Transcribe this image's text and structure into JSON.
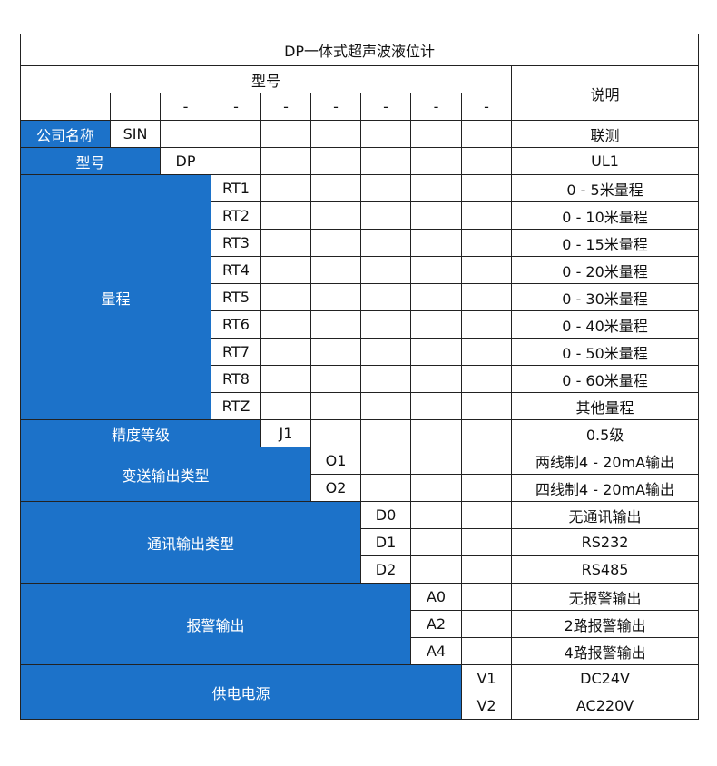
{
  "title": "DP一体式超声波液位计",
  "model_header": "型号",
  "desc_header": "说明",
  "dash": "-",
  "colors": {
    "header_blue": "#1c72c9"
  },
  "rows": [
    {
      "label": "公司名称",
      "code": "SIN",
      "desc": "联测"
    },
    {
      "label": "型号",
      "code": "DP",
      "desc": "UL1"
    },
    {
      "label": "量程",
      "options": [
        {
          "code": "RT1",
          "desc": "0 - 5米量程"
        },
        {
          "code": "RT2",
          "desc": "0 - 10米量程"
        },
        {
          "code": "RT3",
          "desc": "0 - 15米量程"
        },
        {
          "code": "RT4",
          "desc": "0 - 20米量程"
        },
        {
          "code": "RT5",
          "desc": "0 - 30米量程"
        },
        {
          "code": "RT6",
          "desc": "0 - 40米量程"
        },
        {
          "code": "RT7",
          "desc": "0 - 50米量程"
        },
        {
          "code": "RT8",
          "desc": "0 - 60米量程"
        },
        {
          "code": "RTZ",
          "desc": "其他量程"
        }
      ]
    },
    {
      "label": "精度等级",
      "options": [
        {
          "code": "J1",
          "desc": "0.5级"
        }
      ]
    },
    {
      "label": "变送输出类型",
      "options": [
        {
          "code": "O1",
          "desc": "两线制4 - 20mA输出"
        },
        {
          "code": "O2",
          "desc": "四线制4 - 20mA输出"
        }
      ]
    },
    {
      "label": "通讯输出类型",
      "options": [
        {
          "code": "D0",
          "desc": "无通讯输出"
        },
        {
          "code": "D1",
          "desc": "RS232"
        },
        {
          "code": "D2",
          "desc": "RS485"
        }
      ]
    },
    {
      "label": "报警输出",
      "options": [
        {
          "code": "A0",
          "desc": "无报警输出"
        },
        {
          "code": "A2",
          "desc": "2路报警输出"
        },
        {
          "code": "A4",
          "desc": "4路报警输出"
        }
      ]
    },
    {
      "label": "供电电源",
      "options": [
        {
          "code": "V1",
          "desc": "DC24V"
        },
        {
          "code": "V2",
          "desc": "AC220V"
        }
      ]
    }
  ]
}
